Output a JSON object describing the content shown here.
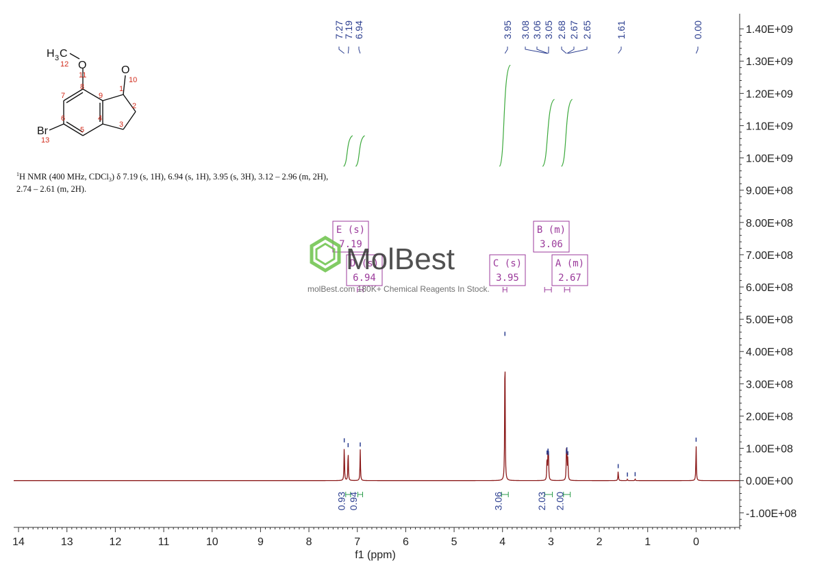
{
  "chart_data": {
    "type": "line",
    "xlabel": "f1 (ppm)",
    "x_ticks": [
      14,
      13,
      12,
      11,
      10,
      9,
      8,
      7,
      6,
      5,
      4,
      3,
      2,
      1,
      0
    ],
    "xlim": [
      14.1,
      -0.9
    ],
    "y_ticks": [
      "1.40E+09",
      "1.30E+09",
      "1.20E+09",
      "1.10E+09",
      "1.00E+09",
      "9.00E+08",
      "8.00E+08",
      "7.00E+08",
      "6.00E+08",
      "5.00E+08",
      "4.00E+08",
      "3.00E+08",
      "2.00E+08",
      "1.00E+08",
      "0.00E+00",
      "-1.00E+08"
    ],
    "y_tick_values": [
      1400000000.0,
      1300000000.0,
      1200000000.0,
      1100000000.0,
      1000000000.0,
      900000000.0,
      800000000.0,
      700000000.0,
      600000000.0,
      500000000.0,
      400000000.0,
      300000000.0,
      200000000.0,
      100000000.0,
      0,
      -100000000.0
    ],
    "ylim": [
      -145000000.0,
      1430000000.0
    ],
    "spectrum_color": "#8b1a1a",
    "integral_color": "#3aa83a",
    "label_color": "#2a3d8f",
    "multiplet_color": "#9b3a9b",
    "peaks": [
      {
        "ppm": 7.27,
        "height": 110000000.0
      },
      {
        "ppm": 7.19,
        "height": 95000000.0
      },
      {
        "ppm": 6.94,
        "height": 97000000.0
      },
      {
        "ppm": 3.95,
        "height": 440000000.0
      },
      {
        "ppm": 3.08,
        "height": 72000000.0
      },
      {
        "ppm": 3.06,
        "height": 78000000.0
      },
      {
        "ppm": 3.05,
        "height": 70000000.0
      },
      {
        "ppm": 2.68,
        "height": 75000000.0
      },
      {
        "ppm": 2.67,
        "height": 82000000.0
      },
      {
        "ppm": 2.65,
        "height": 70000000.0
      },
      {
        "ppm": 1.61,
        "height": 30000000.0
      },
      {
        "ppm": 1.42,
        "height": 4000000.0
      },
      {
        "ppm": 1.26,
        "height": 5000000.0
      },
      {
        "ppm": 0.0,
        "height": 112000000.0
      }
    ],
    "peak_labels": [
      "7.27",
      "7.19",
      "6.94",
      "3.95",
      "3.08",
      "3.06",
      "3.05",
      "2.68",
      "2.67",
      "2.65",
      "1.61",
      "0.00"
    ],
    "peak_label_ppm": [
      7.27,
      7.19,
      6.94,
      3.95,
      3.08,
      3.06,
      3.05,
      2.68,
      2.67,
      2.65,
      1.61,
      0.0
    ],
    "integrals": [
      {
        "label": "0.93",
        "ppm_start": 7.24,
        "ppm_end": 7.14
      },
      {
        "label": "0.94",
        "ppm_start": 6.99,
        "ppm_end": 6.89
      },
      {
        "label": "3.06",
        "ppm_start": 4.02,
        "ppm_end": 3.88
      },
      {
        "label": "2.03",
        "ppm_start": 3.13,
        "ppm_end": 2.97
      },
      {
        "label": "2.00",
        "ppm_start": 2.74,
        "ppm_end": 2.6
      }
    ],
    "multiplets": [
      {
        "id": "E",
        "type": "(s)",
        "shift": "7.19"
      },
      {
        "id": "D",
        "type": "(s)",
        "shift": "6.94"
      },
      {
        "id": "C",
        "type": "(s)",
        "shift": "3.95"
      },
      {
        "id": "B",
        "type": "(m)",
        "shift": "3.06"
      },
      {
        "id": "A",
        "type": "(m)",
        "shift": "2.67"
      }
    ]
  },
  "nmr_description": {
    "line1_sup": "1",
    "line1_a": "H NMR (400 MHz, CDCl",
    "line1_sub": "3",
    "line1_b": ") δ 7.19 (s, 1H), 6.94 (s, 1H), 3.95 (s, 3H), 3.12 – 2.96 (m, 2H),",
    "line2": "2.74 – 2.61 (m, 2H)."
  },
  "molecule": {
    "atoms": {
      "o_methoxy": "O",
      "o_ketone": "O",
      "br": "Br",
      "h3c": "H",
      "h3c_sub": "3",
      "h3c_c": "C"
    },
    "numbers": [
      "12",
      "11",
      "10",
      "1",
      "2",
      "3",
      "4",
      "5",
      "6",
      "7",
      "8",
      "9",
      "13"
    ]
  },
  "watermark": {
    "brand": "MolBest",
    "tagline": "molBest.com 180K+ Chemical Reagents In Stock."
  }
}
